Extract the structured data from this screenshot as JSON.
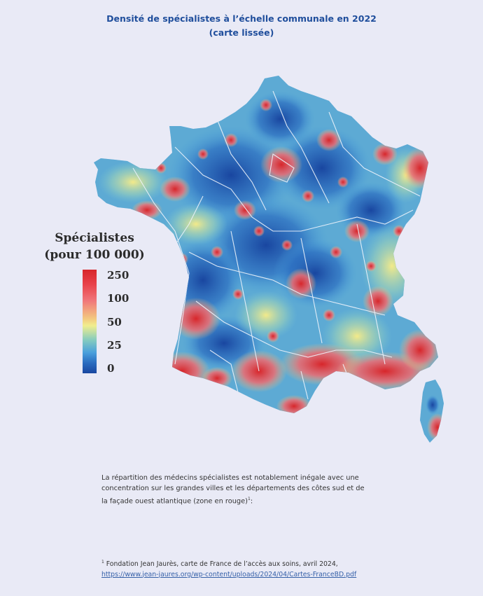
{
  "title": {
    "line1": "Densité de spécialistes à l’échelle communale en 2022",
    "line2": "(carte lissée)"
  },
  "legend": {
    "title_line1": "Spécialistes",
    "title_line2": "(pour 100 000)",
    "ticks": [
      "250",
      "100",
      "50",
      "25",
      "0"
    ]
  },
  "paragraph": {
    "text": "La répartition des médecins spécialistes est notablement inégale avec une concentration sur les grandes villes et les départements des côtes sud et de la façade ouest atlantique (zone en rouge)",
    "footnote_marker": "1",
    "end": ":"
  },
  "footnote": {
    "marker": "1",
    "text": " Fondation Jean Jaurès, carte de France de l’accès aux soins, avril 2024,",
    "link": "https://www.jean-jaures.org/wp-content/uploads/2024/04/Cartes-FranceBD.pdf"
  },
  "colors": {
    "title": "#1f4e9c",
    "low": "#1946a0",
    "mid_low": "#4aa0dc",
    "mid": "#f1ee8e",
    "mid_high": "#f0777b",
    "high": "#d7262b",
    "link": "#3560a8"
  }
}
